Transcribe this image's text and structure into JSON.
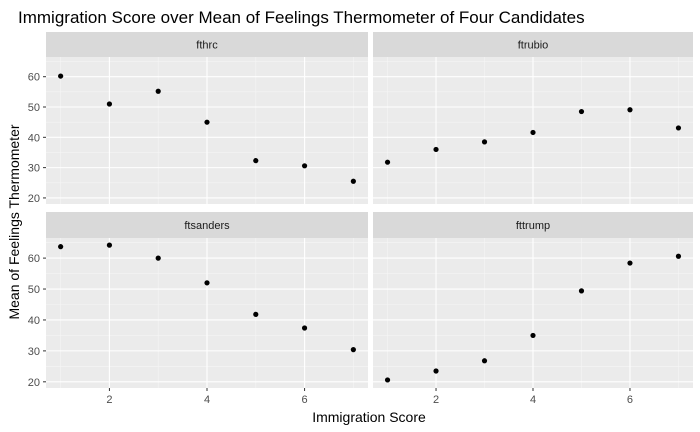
{
  "chart_data": {
    "type": "scatter",
    "title": "Immigration Score over Mean of Feelings Thermometer of Four Candidates",
    "xlabel": "Immigration Score",
    "ylabel": "Mean of Feelings Thermometer",
    "xlim": [
      0.7,
      7.3
    ],
    "ylim": [
      18.0,
      66.5
    ],
    "x_ticks": [
      2,
      4,
      6
    ],
    "y_ticks": [
      20,
      30,
      40,
      50,
      60
    ],
    "grid": true,
    "facets": [
      {
        "name": "fthrc",
        "x": [
          1,
          2,
          3,
          4,
          5,
          6,
          7
        ],
        "y": [
          60.2,
          51.0,
          55.2,
          45.0,
          32.3,
          30.6,
          25.5
        ]
      },
      {
        "name": "ftrubio",
        "x": [
          1,
          2,
          3,
          4,
          5,
          6,
          7
        ],
        "y": [
          31.8,
          36.0,
          38.5,
          41.6,
          48.5,
          49.1,
          43.1
        ]
      },
      {
        "name": "ftsanders",
        "x": [
          1,
          2,
          3,
          4,
          5,
          6,
          7
        ],
        "y": [
          63.7,
          64.2,
          60.0,
          52.0,
          41.8,
          37.4,
          30.4
        ]
      },
      {
        "name": "fttrump",
        "x": [
          1,
          2,
          3,
          4,
          5,
          6,
          7
        ],
        "y": [
          20.6,
          23.5,
          26.8,
          35.0,
          49.4,
          58.4,
          60.6
        ]
      }
    ]
  }
}
